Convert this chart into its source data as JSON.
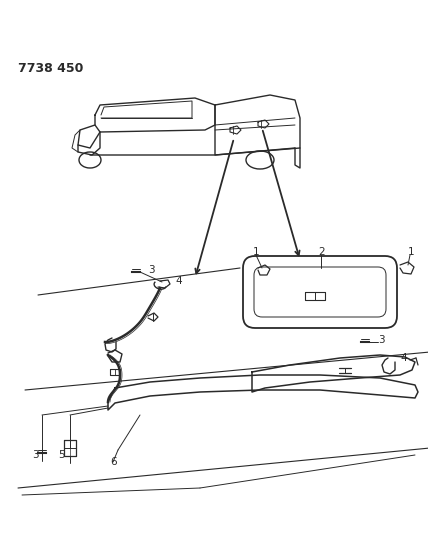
{
  "bg_color": "#ffffff",
  "line_color": "#2a2a2a",
  "fig_width": 4.28,
  "fig_height": 5.33,
  "dpi": 100,
  "part_number": "7738 450"
}
